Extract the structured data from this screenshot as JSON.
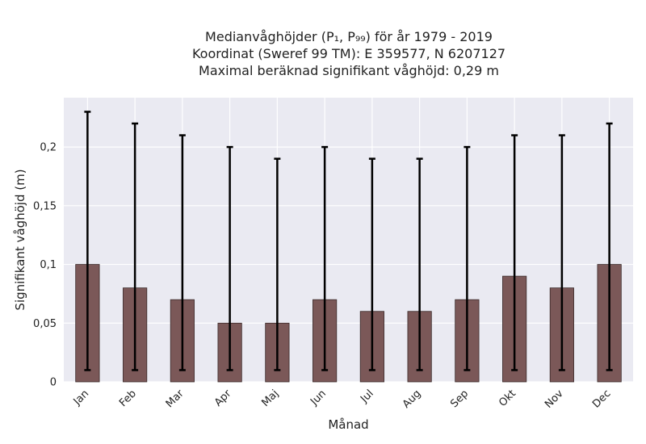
{
  "title": {
    "line1": "Medianvåghöjder (P₁, P₉₉) för år 1979 - 2019",
    "line2": "Koordinat (Sweref 99 TM): E 359577, N 6207127",
    "line3": "Maximal beräknad signifikant våghöjd: 0,29 m"
  },
  "chart_data": {
    "type": "bar",
    "categories": [
      "Jan",
      "Feb",
      "Mar",
      "Apr",
      "Maj",
      "Jun",
      "Jul",
      "Aug",
      "Sep",
      "Okt",
      "Nov",
      "Dec"
    ],
    "values": [
      0.1,
      0.08,
      0.07,
      0.05,
      0.05,
      0.07,
      0.06,
      0.06,
      0.07,
      0.09,
      0.08,
      0.1
    ],
    "error_low": [
      0.01,
      0.01,
      0.01,
      0.01,
      0.01,
      0.01,
      0.01,
      0.01,
      0.01,
      0.01,
      0.01,
      0.01
    ],
    "error_high": [
      0.23,
      0.22,
      0.21,
      0.2,
      0.19,
      0.2,
      0.19,
      0.19,
      0.2,
      0.21,
      0.21,
      0.22
    ],
    "xlabel": "Månad",
    "ylabel": "Signifikant våghöjd (m)",
    "ylim": [
      0,
      0.242
    ],
    "yticks": [
      0,
      0.05,
      0.1,
      0.15,
      0.2
    ],
    "ytick_labels": [
      "0",
      "0,05",
      "0,1",
      "0,15",
      "0,2"
    ],
    "grid": true,
    "colors": {
      "bar": "#7b5858",
      "bar_edge": "#3a2a2a",
      "error_bar": "#000000",
      "plot_background": "#eaeaf2",
      "grid": "#ffffff"
    }
  }
}
